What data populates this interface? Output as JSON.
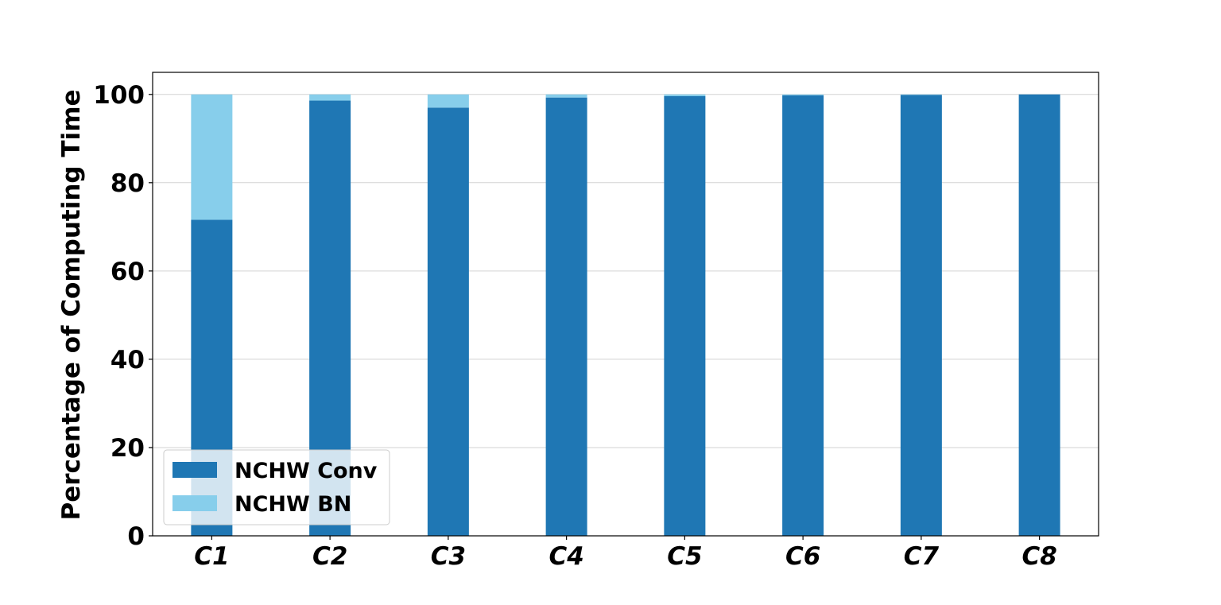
{
  "chart_data": {
    "type": "bar",
    "stacked": true,
    "title": "",
    "xlabel": "",
    "ylabel": "Percentage of Computing Time",
    "categories": [
      "C1",
      "C2",
      "C3",
      "C4",
      "C5",
      "C6",
      "C7",
      "C8"
    ],
    "series": [
      {
        "name": "NCHW Conv",
        "color": "#1f77b4",
        "values": [
          71.6,
          98.6,
          97.0,
          99.3,
          99.6,
          99.8,
          99.9,
          100.0
        ]
      },
      {
        "name": "NCHW BN",
        "color": "#87ceeb",
        "values": [
          28.4,
          1.4,
          3.0,
          0.7,
          0.4,
          0.2,
          0.1,
          0.0
        ]
      }
    ],
    "ylim": [
      0,
      105
    ],
    "yticks": [
      0,
      20,
      40,
      60,
      80,
      100
    ],
    "grid": "horizontal",
    "legend_position": "lower-left"
  }
}
